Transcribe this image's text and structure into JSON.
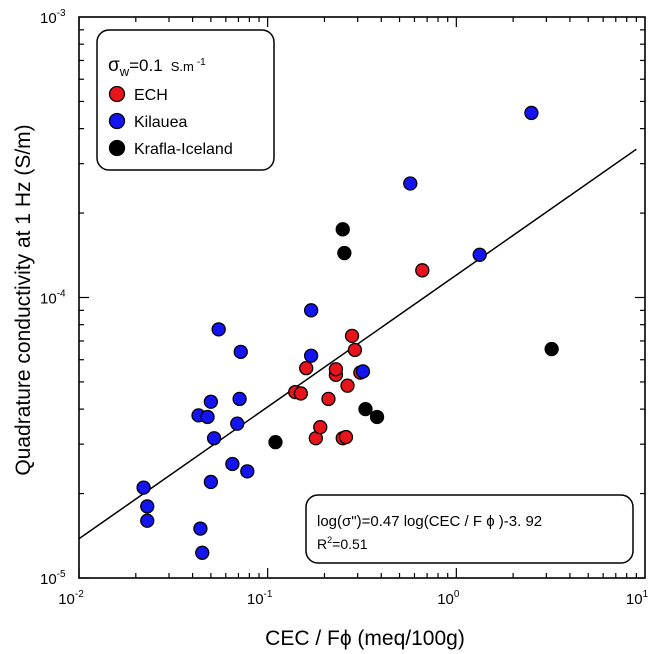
{
  "chart_data": {
    "type": "scatter",
    "title": "",
    "xlabel": "CEC /  Fϕ (meq/100g)",
    "ylabel": "Quadrature conductivity at 1 Hz (S/m)",
    "xscale": "log",
    "yscale": "log",
    "xlim": [
      0.01,
      10
    ],
    "ylim": [
      1e-05,
      0.001
    ],
    "x_ticks": [
      {
        "base": "10",
        "exp": "-2"
      },
      {
        "base": "10",
        "exp": "-1"
      },
      {
        "base": "10",
        "exp": "0"
      },
      {
        "base": "10",
        "exp": "1"
      }
    ],
    "y_ticks": [
      {
        "base": "10",
        "exp": "-5"
      },
      {
        "base": "10",
        "exp": "-4"
      },
      {
        "base": "10",
        "exp": "-3"
      }
    ],
    "legend": {
      "placement": "top-left",
      "header_main": "σ",
      "header_sub": "w",
      "header_value": "=0.1",
      "header_unit": "S.m",
      "header_unit_exp": "-1"
    },
    "series": [
      {
        "name": "ECH",
        "color": "#e8141b",
        "points": [
          [
            0.14,
            4.6e-05
          ],
          [
            0.15,
            4.55e-05
          ],
          [
            0.16,
            5.6e-05
          ],
          [
            0.18,
            3.15e-05
          ],
          [
            0.19,
            3.45e-05
          ],
          [
            0.21,
            4.35e-05
          ],
          [
            0.23,
            5.3e-05
          ],
          [
            0.23,
            5.55e-05
          ],
          [
            0.25,
            3.15e-05
          ],
          [
            0.26,
            3.18e-05
          ],
          [
            0.265,
            4.85e-05
          ],
          [
            0.28,
            7.3e-05
          ],
          [
            0.29,
            6.5e-05
          ],
          [
            0.31,
            5.4e-05
          ],
          [
            0.66,
            0.000125
          ]
        ]
      },
      {
        "name": "Kilauea",
        "color": "#1414f0",
        "points": [
          [
            0.022,
            2.1e-05
          ],
          [
            0.023,
            1.6e-05
          ],
          [
            0.023,
            1.8e-05
          ],
          [
            0.043,
            3.8e-05
          ],
          [
            0.044,
            1.5e-05
          ],
          [
            0.045,
            1.23e-05
          ],
          [
            0.048,
            3.75e-05
          ],
          [
            0.05,
            4.25e-05
          ],
          [
            0.05,
            2.2e-05
          ],
          [
            0.052,
            3.15e-05
          ],
          [
            0.055,
            7.7e-05
          ],
          [
            0.065,
            2.55e-05
          ],
          [
            0.069,
            3.55e-05
          ],
          [
            0.071,
            4.35e-05
          ],
          [
            0.072,
            6.4e-05
          ],
          [
            0.078,
            2.4e-05
          ],
          [
            0.17,
            9e-05
          ],
          [
            0.17,
            6.2e-05
          ],
          [
            0.32,
            5.45e-05
          ],
          [
            0.57,
            0.000255
          ],
          [
            1.33,
            0.000142
          ],
          [
            2.5,
            0.000455
          ]
        ]
      },
      {
        "name": "Krafla-Iceland",
        "color": "#000000",
        "points": [
          [
            0.11,
            3.05e-05
          ],
          [
            0.25,
            0.000175
          ],
          [
            0.255,
            0.000144
          ],
          [
            0.33,
            4e-05
          ],
          [
            0.38,
            3.75e-05
          ],
          [
            3.2,
            6.55e-05
          ]
        ]
      }
    ],
    "fit_line": {
      "slope": 0.47,
      "intercept": -3.92,
      "equation": "log(σ\")=0.47 log(CEC  /  F ϕ )-3. 92",
      "r2_base": "R",
      "r2_exp": "2",
      "r2_value": "=0.51"
    }
  }
}
